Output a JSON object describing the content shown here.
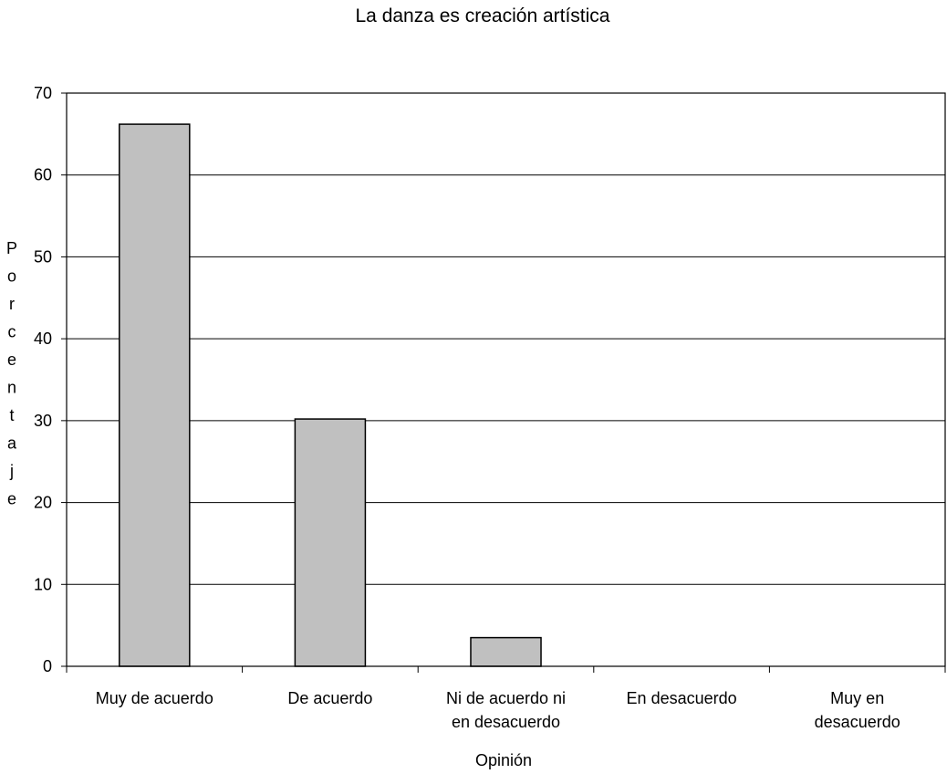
{
  "chart_data": {
    "type": "bar",
    "title": "La danza es creación artística",
    "xlabel": "Opinión",
    "ylabel": "Porcentaje",
    "categories": [
      [
        "Muy de acuerdo"
      ],
      [
        "De acuerdo"
      ],
      [
        "Ni de acuerdo ni",
        "en desacuerdo"
      ],
      [
        "En desacuerdo"
      ],
      [
        "Muy en",
        "desacuerdo"
      ]
    ],
    "values": [
      66.2,
      30.2,
      3.5,
      0,
      0
    ],
    "ylim": [
      0,
      70
    ],
    "yticks": [
      0,
      10,
      20,
      30,
      40,
      50,
      60,
      70
    ],
    "grid": true,
    "legend": "none",
    "colors": {
      "bar_fill": "#c0c0c0",
      "bar_stroke": "#000000",
      "grid": "#000000"
    }
  }
}
